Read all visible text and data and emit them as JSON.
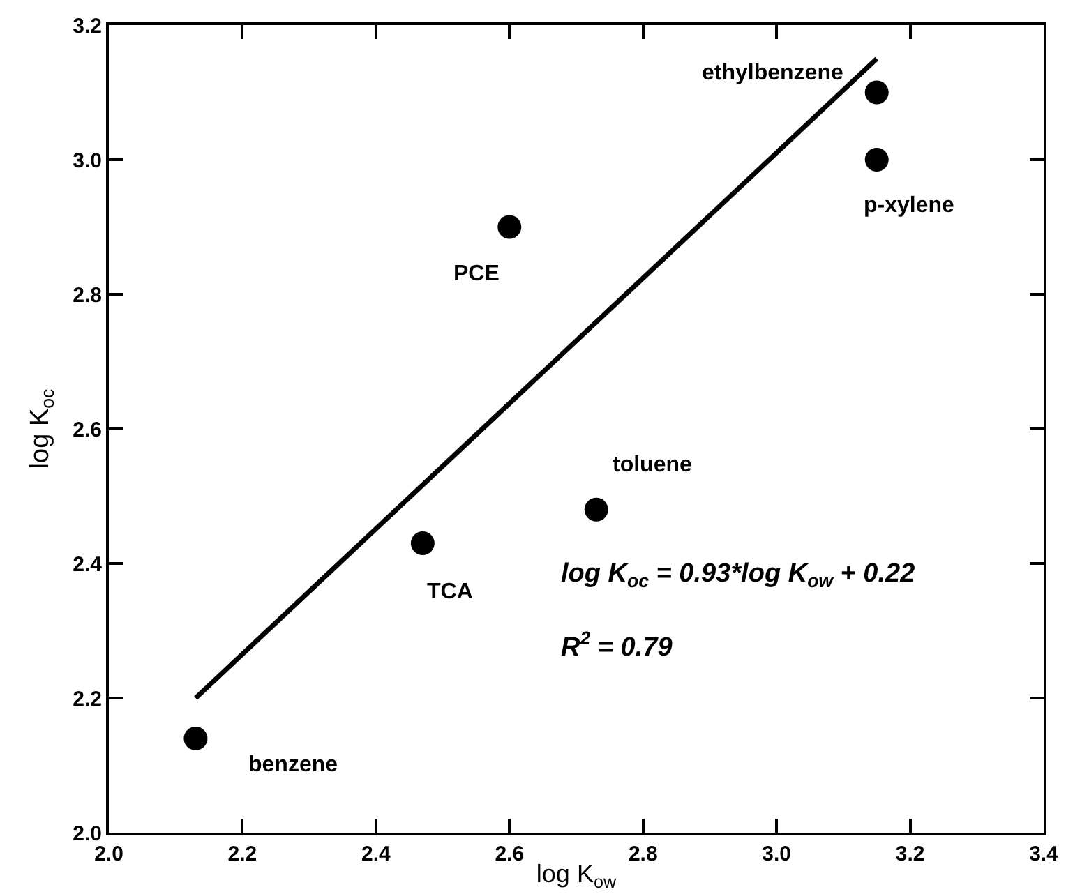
{
  "chart_data": {
    "type": "scatter",
    "xlabel": "log K$_{ow}$",
    "ylabel": "log K$_{oc}$",
    "x": [
      2.13,
      2.47,
      2.6,
      2.73,
      3.15,
      3.15
    ],
    "series": [
      {
        "color": "#000000",
        "values": [
          2.14,
          2.43,
          2.9,
          2.48,
          3.1,
          3.0
        ]
      },
      {
        "type": "line",
        "color": "#000000",
        "x": [
          2.13,
          3.15
        ],
        "values": [
          2.2,
          3.15
        ],
        "marker": "none"
      }
    ],
    "annotations": [
      {
        "text": "benzene",
        "x": 2.13,
        "y": 2.14
      },
      {
        "text": "TCA",
        "x": 2.47,
        "y": 2.43
      },
      {
        "text": "PCE",
        "x": 2.6,
        "y": 2.9
      },
      {
        "text": "toluene",
        "x": 2.73,
        "y": 2.48
      },
      {
        "text": "ethylbenzene",
        "x": 3.15,
        "y": 3.1
      },
      {
        "text": "p-xylene",
        "x": 3.15,
        "y": 3.0
      },
      "log K$_{oc}$ = 0.93*log K$_{ow}$ + 0.22",
      "R$^{2}$ = 0.79"
    ],
    "xlim": [
      2.0,
      3.4
    ],
    "xticks": [
      "2.0",
      2.2,
      2.4,
      2.6,
      2.8,
      "3.0",
      3.2,
      3.4
    ],
    "ylim": [
      2.0,
      3.2
    ],
    "yticks": [
      "2.0",
      2.2,
      2.4,
      2.6,
      2.8,
      "3.0",
      3.2
    ],
    "grid": false,
    "marker": "circle",
    "line_style": "solid"
  }
}
